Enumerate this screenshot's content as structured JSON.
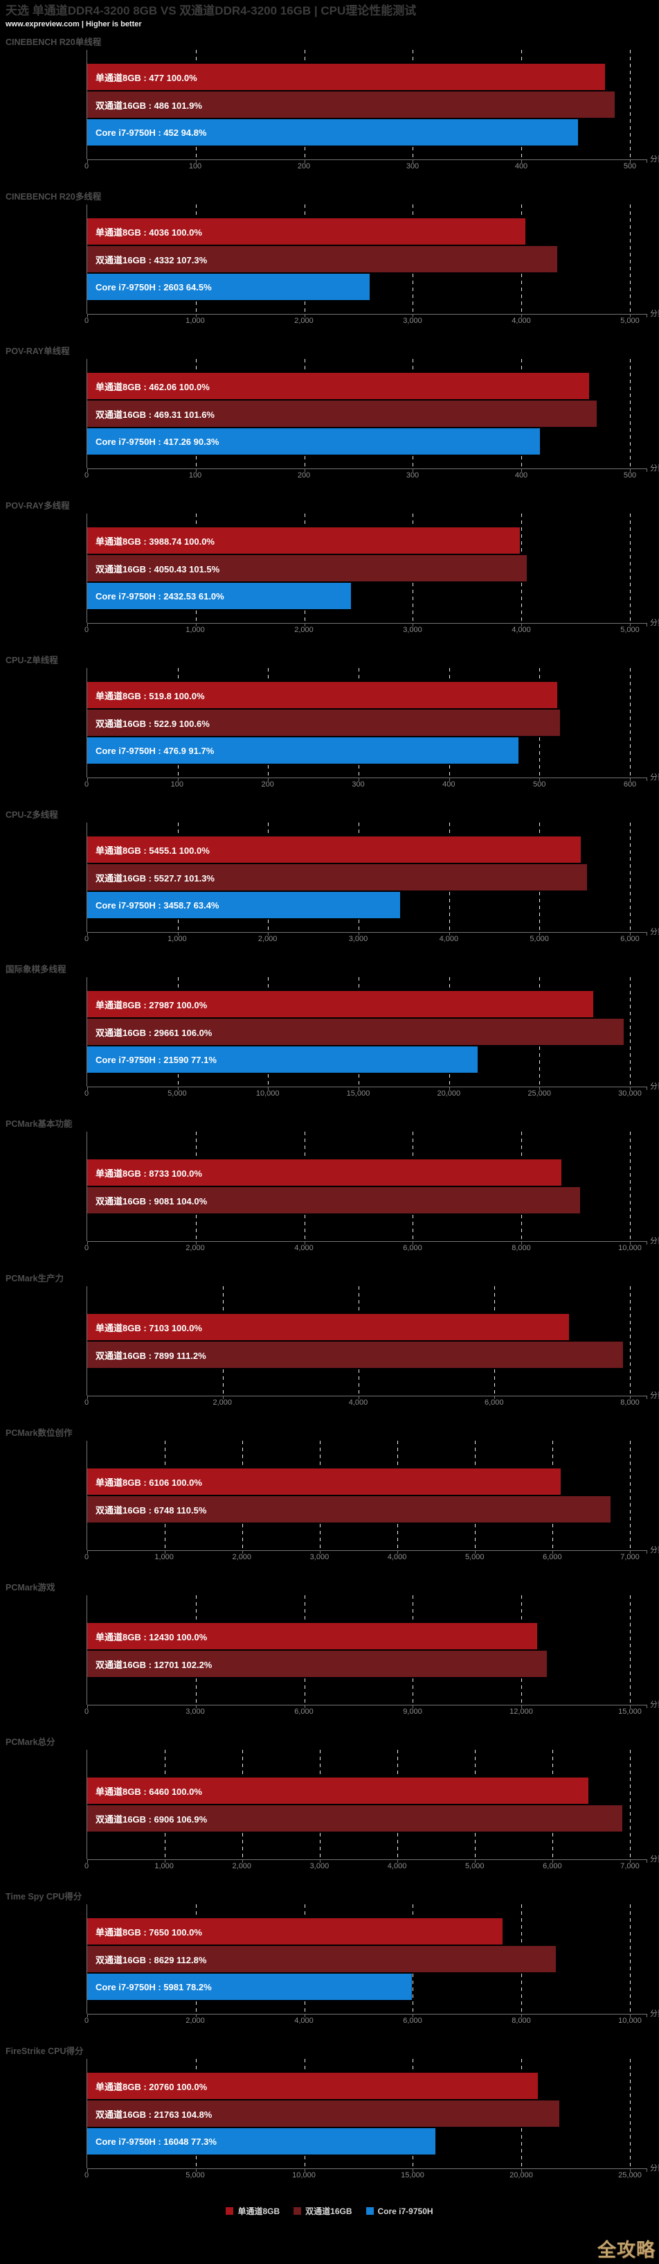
{
  "page": {
    "title": "天选 单通道DDR4-3200 8GB VS 双通道DDR4-3200 16GB | CPU理论性能测试",
    "subtitle": "www.expreview.com | Higher is better",
    "watermark": "全攻略",
    "background": "#000000"
  },
  "colors": {
    "single": "#a8161b",
    "dual": "#701b1e",
    "cpu": "#1482d8"
  },
  "legend": [
    {
      "label": "单通道8GB",
      "color_key": "single"
    },
    {
      "label": "双通道16GB",
      "color_key": "dual"
    },
    {
      "label": "Core i7-9750H",
      "color_key": "cpu"
    }
  ],
  "chart_data": [
    {
      "type": "bar",
      "title": "CINEBENCH R20单线程",
      "xlabel": "分数",
      "xlim": [
        0,
        500
      ],
      "tick_values": [
        0,
        100,
        200,
        300,
        400,
        500
      ],
      "tick_labels": [
        "0",
        "100",
        "200",
        "300",
        "400",
        "500"
      ],
      "series": [
        {
          "name": "单通道8GB",
          "value": 477,
          "percent": 100.0,
          "label": "单通道8GB : 477  100.0%",
          "color_key": "single"
        },
        {
          "name": "双通道16GB",
          "value": 486,
          "percent": 101.9,
          "label": "双通道16GB : 486  101.9%",
          "color_key": "dual"
        },
        {
          "name": "Core i7-9750H",
          "value": 452,
          "percent": 94.8,
          "label": "Core i7-9750H : 452  94.8%",
          "color_key": "cpu"
        }
      ]
    },
    {
      "type": "bar",
      "title": "CINEBENCH R20多线程",
      "xlabel": "分数",
      "xlim": [
        0,
        5000
      ],
      "tick_values": [
        0,
        1000,
        2000,
        3000,
        4000,
        5000
      ],
      "tick_labels": [
        "0",
        "1,000",
        "2,000",
        "3,000",
        "4,000",
        "5,000"
      ],
      "series": [
        {
          "name": "单通道8GB",
          "value": 4036,
          "percent": 100.0,
          "label": "单通道8GB : 4036  100.0%",
          "color_key": "single"
        },
        {
          "name": "双通道16GB",
          "value": 4332,
          "percent": 107.3,
          "label": "双通道16GB : 4332  107.3%",
          "color_key": "dual"
        },
        {
          "name": "Core i7-9750H",
          "value": 2603,
          "percent": 64.5,
          "label": "Core i7-9750H : 2603  64.5%",
          "color_key": "cpu"
        }
      ]
    },
    {
      "type": "bar",
      "title": "POV-RAY单线程",
      "xlabel": "分数",
      "xlim": [
        0,
        500
      ],
      "tick_values": [
        0,
        100,
        200,
        300,
        400,
        500
      ],
      "tick_labels": [
        "0",
        "100",
        "200",
        "300",
        "400",
        "500"
      ],
      "series": [
        {
          "name": "单通道8GB",
          "value": 462.06,
          "percent": 100.0,
          "label": "单通道8GB : 462.06  100.0%",
          "color_key": "single"
        },
        {
          "name": "双通道16GB",
          "value": 469.31,
          "percent": 101.6,
          "label": "双通道16GB : 469.31  101.6%",
          "color_key": "dual"
        },
        {
          "name": "Core i7-9750H",
          "value": 417.26,
          "percent": 90.3,
          "label": "Core i7-9750H : 417.26  90.3%",
          "color_key": "cpu"
        }
      ]
    },
    {
      "type": "bar",
      "title": "POV-RAY多线程",
      "xlabel": "分数",
      "xlim": [
        0,
        5000
      ],
      "tick_values": [
        0,
        1000,
        2000,
        3000,
        4000,
        5000
      ],
      "tick_labels": [
        "0",
        "1,000",
        "2,000",
        "3,000",
        "4,000",
        "5,000"
      ],
      "series": [
        {
          "name": "单通道8GB",
          "value": 3988.74,
          "percent": 100.0,
          "label": "单通道8GB : 3988.74  100.0%",
          "color_key": "single"
        },
        {
          "name": "双通道16GB",
          "value": 4050.43,
          "percent": 101.5,
          "label": "双通道16GB : 4050.43  101.5%",
          "color_key": "dual"
        },
        {
          "name": "Core i7-9750H",
          "value": 2432.53,
          "percent": 61.0,
          "label": "Core i7-9750H : 2432.53  61.0%",
          "color_key": "cpu"
        }
      ]
    },
    {
      "type": "bar",
      "title": "CPU-Z单线程",
      "xlabel": "分数",
      "xlim": [
        0,
        600
      ],
      "tick_values": [
        0,
        100,
        200,
        300,
        400,
        500,
        600
      ],
      "tick_labels": [
        "0",
        "100",
        "200",
        "300",
        "400",
        "500",
        "600"
      ],
      "series": [
        {
          "name": "单通道8GB",
          "value": 519.8,
          "percent": 100.0,
          "label": "单通道8GB : 519.8  100.0%",
          "color_key": "single"
        },
        {
          "name": "双通道16GB",
          "value": 522.9,
          "percent": 100.6,
          "label": "双通道16GB : 522.9  100.6%",
          "color_key": "dual"
        },
        {
          "name": "Core i7-9750H",
          "value": 476.9,
          "percent": 91.7,
          "label": "Core i7-9750H : 476.9  91.7%",
          "color_key": "cpu"
        }
      ]
    },
    {
      "type": "bar",
      "title": "CPU-Z多线程",
      "xlabel": "分数",
      "xlim": [
        0,
        6000
      ],
      "tick_values": [
        0,
        1000,
        2000,
        3000,
        4000,
        5000,
        6000
      ],
      "tick_labels": [
        "0",
        "1,000",
        "2,000",
        "3,000",
        "4,000",
        "5,000",
        "6,000"
      ],
      "series": [
        {
          "name": "单通道8GB",
          "value": 5455.1,
          "percent": 100.0,
          "label": "单通道8GB : 5455.1  100.0%",
          "color_key": "single"
        },
        {
          "name": "双通道16GB",
          "value": 5527.7,
          "percent": 101.3,
          "label": "双通道16GB : 5527.7  101.3%",
          "color_key": "dual"
        },
        {
          "name": "Core i7-9750H",
          "value": 3458.7,
          "percent": 63.4,
          "label": "Core i7-9750H : 3458.7  63.4%",
          "color_key": "cpu"
        }
      ]
    },
    {
      "type": "bar",
      "title": "国际象棋多线程",
      "xlabel": "分数",
      "xlim": [
        0,
        30000
      ],
      "tick_values": [
        0,
        5000,
        10000,
        15000,
        20000,
        25000,
        30000
      ],
      "tick_labels": [
        "0",
        "5,000",
        "10,000",
        "15,000",
        "20,000",
        "25,000",
        "30,000"
      ],
      "series": [
        {
          "name": "单通道8GB",
          "value": 27987,
          "percent": 100.0,
          "label": "单通道8GB : 27987  100.0%",
          "color_key": "single"
        },
        {
          "name": "双通道16GB",
          "value": 29661,
          "percent": 106.0,
          "label": "双通道16GB : 29661  106.0%",
          "color_key": "dual"
        },
        {
          "name": "Core i7-9750H",
          "value": 21590,
          "percent": 77.1,
          "label": "Core i7-9750H : 21590  77.1%",
          "color_key": "cpu"
        }
      ]
    },
    {
      "type": "bar",
      "title": "PCMark基本功能",
      "xlabel": "分数",
      "xlim": [
        0,
        10000
      ],
      "tick_values": [
        0,
        2000,
        4000,
        6000,
        8000,
        10000
      ],
      "tick_labels": [
        "0",
        "2,000",
        "4,000",
        "6,000",
        "8,000",
        "10,000"
      ],
      "series": [
        {
          "name": "单通道8GB",
          "value": 8733,
          "percent": 100.0,
          "label": "单通道8GB : 8733  100.0%",
          "color_key": "single"
        },
        {
          "name": "双通道16GB",
          "value": 9081,
          "percent": 104.0,
          "label": "双通道16GB : 9081  104.0%",
          "color_key": "dual"
        }
      ]
    },
    {
      "type": "bar",
      "title": "PCMark生产力",
      "xlabel": "分数",
      "xlim": [
        0,
        8000
      ],
      "tick_values": [
        0,
        2000,
        4000,
        6000,
        8000
      ],
      "tick_labels": [
        "0",
        "2,000",
        "4,000",
        "6,000",
        "8,000"
      ],
      "series": [
        {
          "name": "单通道8GB",
          "value": 7103,
          "percent": 100.0,
          "label": "单通道8GB : 7103  100.0%",
          "color_key": "single"
        },
        {
          "name": "双通道16GB",
          "value": 7899,
          "percent": 111.2,
          "label": "双通道16GB : 7899  111.2%",
          "color_key": "dual"
        }
      ]
    },
    {
      "type": "bar",
      "title": "PCMark数位创作",
      "xlabel": "分数",
      "xlim": [
        0,
        7000
      ],
      "tick_values": [
        0,
        1000,
        2000,
        3000,
        4000,
        5000,
        6000,
        7000
      ],
      "tick_labels": [
        "0",
        "1,000",
        "2,000",
        "3,000",
        "4,000",
        "5,000",
        "6,000",
        "7,000"
      ],
      "series": [
        {
          "name": "单通道8GB",
          "value": 6106,
          "percent": 100.0,
          "label": "单通道8GB : 6106  100.0%",
          "color_key": "single"
        },
        {
          "name": "双通道16GB",
          "value": 6748,
          "percent": 110.5,
          "label": "双通道16GB : 6748  110.5%",
          "color_key": "dual"
        }
      ]
    },
    {
      "type": "bar",
      "title": "PCMark游戏",
      "xlabel": "分数",
      "xlim": [
        0,
        15000
      ],
      "tick_values": [
        0,
        3000,
        6000,
        9000,
        12000,
        15000
      ],
      "tick_labels": [
        "0",
        "3,000",
        "6,000",
        "9,000",
        "12,000",
        "15,000"
      ],
      "series": [
        {
          "name": "单通道8GB",
          "value": 12430,
          "percent": 100.0,
          "label": "单通道8GB : 12430  100.0%",
          "color_key": "single"
        },
        {
          "name": "双通道16GB",
          "value": 12701,
          "percent": 102.2,
          "label": "双通道16GB : 12701  102.2%",
          "color_key": "dual"
        }
      ]
    },
    {
      "type": "bar",
      "title": "PCMark总分",
      "xlabel": "分数",
      "xlim": [
        0,
        7000
      ],
      "tick_values": [
        0,
        1000,
        2000,
        3000,
        4000,
        5000,
        6000,
        7000
      ],
      "tick_labels": [
        "0",
        "1,000",
        "2,000",
        "3,000",
        "4,000",
        "5,000",
        "6,000",
        "7,000"
      ],
      "series": [
        {
          "name": "单通道8GB",
          "value": 6460,
          "percent": 100.0,
          "label": "单通道8GB : 6460  100.0%",
          "color_key": "single"
        },
        {
          "name": "双通道16GB",
          "value": 6906,
          "percent": 106.9,
          "label": "双通道16GB : 6906  106.9%",
          "color_key": "dual"
        }
      ]
    },
    {
      "type": "bar",
      "title": "Time Spy CPU得分",
      "xlabel": "分数",
      "xlim": [
        0,
        10000
      ],
      "tick_values": [
        0,
        2000,
        4000,
        6000,
        8000,
        10000
      ],
      "tick_labels": [
        "0",
        "2,000",
        "4,000",
        "6,000",
        "8,000",
        "10,000"
      ],
      "series": [
        {
          "name": "单通道8GB",
          "value": 7650,
          "percent": 100.0,
          "label": "单通道8GB : 7650  100.0%",
          "color_key": "single"
        },
        {
          "name": "双通道16GB",
          "value": 8629,
          "percent": 112.8,
          "label": "双通道16GB : 8629  112.8%",
          "color_key": "dual"
        },
        {
          "name": "Core i7-9750H",
          "value": 5981,
          "percent": 78.2,
          "label": "Core i7-9750H : 5981  78.2%",
          "color_key": "cpu"
        }
      ]
    },
    {
      "type": "bar",
      "title": "FireStrike CPU得分",
      "xlabel": "分数",
      "xlim": [
        0,
        25000
      ],
      "tick_values": [
        0,
        5000,
        10000,
        15000,
        20000,
        25000
      ],
      "tick_labels": [
        "0",
        "5,000",
        "10,000",
        "15,000",
        "20,000",
        "25,000"
      ],
      "series": [
        {
          "name": "单通道8GB",
          "value": 20760,
          "percent": 100.0,
          "label": "单通道8GB : 20760  100.0%",
          "color_key": "single"
        },
        {
          "name": "双通道16GB",
          "value": 21763,
          "percent": 104.8,
          "label": "双通道16GB : 21763  104.8%",
          "color_key": "dual"
        },
        {
          "name": "Core i7-9750H",
          "value": 16048,
          "percent": 77.3,
          "label": "Core i7-9750H : 16048  77.3%",
          "color_key": "cpu"
        }
      ]
    }
  ]
}
